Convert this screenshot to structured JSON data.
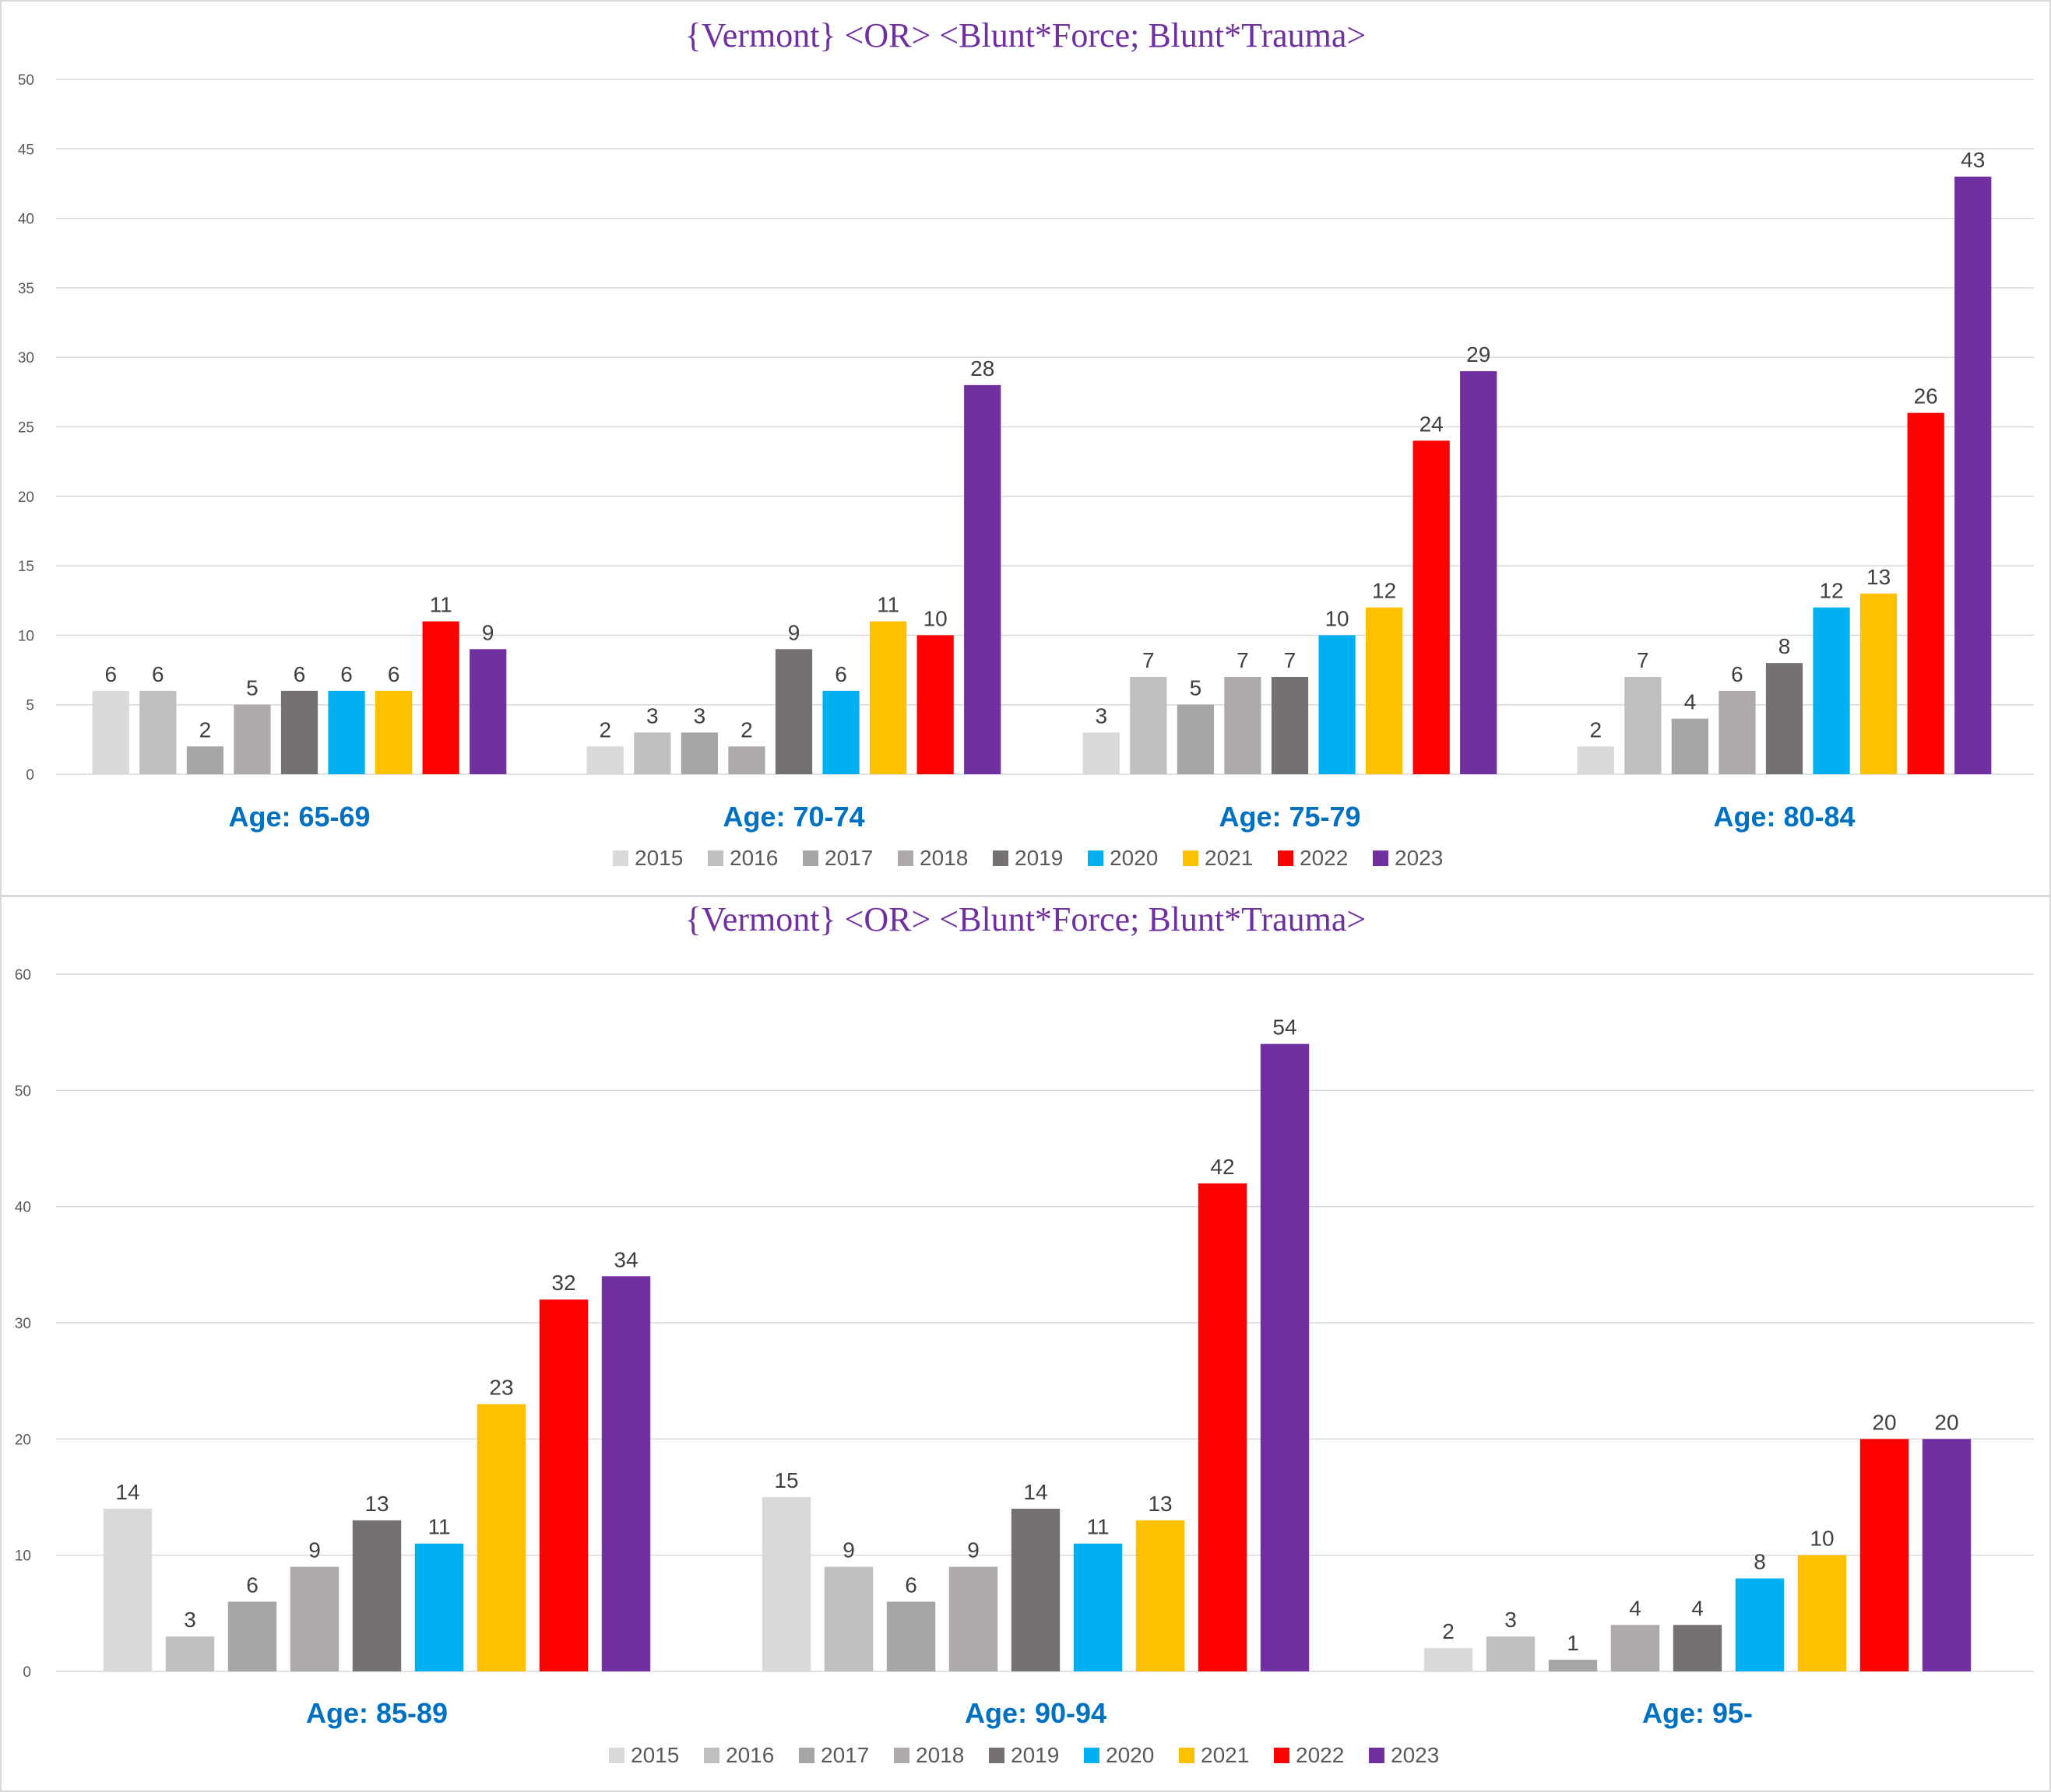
{
  "series_colors": {
    "2015": "#d9d9d9",
    "2016": "#bfbfbf",
    "2017": "#a6a6a6",
    "2018": "#aeaaaa",
    "2019": "#767171",
    "2020": "#00b0f0",
    "2021": "#ffc000",
    "2022": "#ff0000",
    "2023": "#7030a0"
  },
  "chart_data": [
    {
      "type": "bar",
      "title": "{Vermont}  <OR> <Blunt*Force; Blunt*Trauma>",
      "categories": [
        "Age: 65-69",
        "Age: 70-74",
        "Age: 75-79",
        "Age: 80-84"
      ],
      "ylim": [
        0,
        50
      ],
      "yticks": [
        "0",
        "5",
        "10",
        "15",
        "20",
        "25",
        "30",
        "35",
        "40",
        "45",
        "50"
      ],
      "grid": true,
      "legend_position": "bottom",
      "series": [
        {
          "name": "2015",
          "values": [
            6,
            2,
            3,
            2
          ]
        },
        {
          "name": "2016",
          "values": [
            6,
            3,
            7,
            7
          ]
        },
        {
          "name": "2017",
          "values": [
            2,
            3,
            5,
            4
          ]
        },
        {
          "name": "2018",
          "values": [
            5,
            2,
            7,
            6
          ]
        },
        {
          "name": "2019",
          "values": [
            6,
            9,
            7,
            8
          ]
        },
        {
          "name": "2020",
          "values": [
            6,
            6,
            10,
            12
          ]
        },
        {
          "name": "2021",
          "values": [
            6,
            11,
            12,
            13
          ]
        },
        {
          "name": "2022",
          "values": [
            11,
            10,
            24,
            26
          ]
        },
        {
          "name": "2023",
          "values": [
            9,
            28,
            29,
            43
          ]
        }
      ]
    },
    {
      "type": "bar",
      "title": "{Vermont}  <OR> <Blunt*Force; Blunt*Trauma>",
      "categories": [
        "Age: 85-89",
        "Age: 90-94",
        "Age: 95-"
      ],
      "ylim": [
        0,
        60
      ],
      "yticks": [
        "0",
        "10",
        "20",
        "30",
        "40",
        "50",
        "60"
      ],
      "grid": true,
      "legend_position": "bottom",
      "series": [
        {
          "name": "2015",
          "values": [
            14,
            15,
            2
          ]
        },
        {
          "name": "2016",
          "values": [
            3,
            9,
            3
          ]
        },
        {
          "name": "2017",
          "values": [
            6,
            6,
            1
          ]
        },
        {
          "name": "2018",
          "values": [
            9,
            9,
            4
          ]
        },
        {
          "name": "2019",
          "values": [
            13,
            14,
            4
          ]
        },
        {
          "name": "2020",
          "values": [
            11,
            11,
            8
          ]
        },
        {
          "name": "2021",
          "values": [
            23,
            13,
            10
          ]
        },
        {
          "name": "2022",
          "values": [
            32,
            42,
            20
          ]
        },
        {
          "name": "2023",
          "values": [
            34,
            54,
            20
          ]
        }
      ]
    }
  ]
}
